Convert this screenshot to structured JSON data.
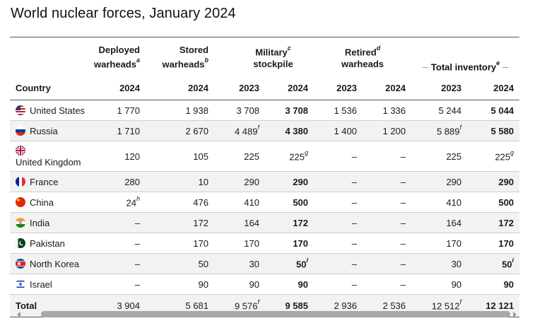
{
  "title": "World nuclear forces, January 2024",
  "headers": {
    "country": "Country",
    "deployed": {
      "line1": "Deployed",
      "line2": "warheads",
      "note": "a"
    },
    "stored": {
      "line1": "Stored",
      "line2": "warheads",
      "note": "b"
    },
    "military": {
      "line1": "Military",
      "note": "c",
      "line2": "stockpile"
    },
    "retired": {
      "line1": "Retired",
      "note": "d",
      "line2": "warheads"
    },
    "total": {
      "label": "Total inventory",
      "note": "e"
    },
    "years": [
      "2024",
      "2024",
      "2023",
      "2024",
      "2023",
      "2024",
      "2023",
      "2024"
    ]
  },
  "rows": [
    {
      "country": "United States",
      "flag": "us-flag-icon",
      "deployed": "1 770",
      "stored": "1 938",
      "mil23": "3 708",
      "mil24": "3 708",
      "ret23": "1 536",
      "ret24": "1 336",
      "tot23": "5 244",
      "tot24": "5 044"
    },
    {
      "country": "Russia",
      "flag": "russia-flag-icon",
      "deployed": "1 710",
      "stored": "2 670",
      "mil23": "4 489",
      "mil23_note": "f",
      "mil24": "4 380",
      "ret23": "1 400",
      "ret24": "1 200",
      "tot23": "5 889",
      "tot23_note": "f",
      "tot24": "5 580"
    },
    {
      "country": "United Kingdom",
      "flag": "uk-flag-icon",
      "deployed": "120",
      "stored": "105",
      "mil23": "225",
      "mil24": "225",
      "mil24_note": "g",
      "ret23": "–",
      "ret24": "–",
      "tot23": "225",
      "tot24": "225",
      "tot24_note": "g"
    },
    {
      "country": "France",
      "flag": "france-flag-icon",
      "deployed": "280",
      "stored": "10",
      "mil23": "290",
      "mil24": "290",
      "ret23": "–",
      "ret24": "–",
      "tot23": "290",
      "tot24": "290"
    },
    {
      "country": "China",
      "flag": "china-flag-icon",
      "deployed": "24",
      "deployed_note": "h",
      "stored": "476",
      "mil23": "410",
      "mil24": "500",
      "ret23": "–",
      "ret24": "–",
      "tot23": "410",
      "tot24": "500"
    },
    {
      "country": "India",
      "flag": "india-flag-icon",
      "deployed": "–",
      "stored": "172",
      "mil23": "164",
      "mil24": "172",
      "ret23": "–",
      "ret24": "–",
      "tot23": "164",
      "tot24": "172"
    },
    {
      "country": "Pakistan",
      "flag": "pakistan-flag-icon",
      "deployed": "–",
      "stored": "170",
      "mil23": "170",
      "mil24": "170",
      "ret23": "–",
      "ret24": "–",
      "tot23": "170",
      "tot24": "170"
    },
    {
      "country": "North Korea",
      "flag": "north-korea-flag-icon",
      "deployed": "–",
      "stored": "50",
      "mil23": "30",
      "mil24": "50",
      "mil24_note": "i",
      "ret23": "–",
      "ret24": "–",
      "tot23": "30",
      "tot24": "50",
      "tot24_note": "i"
    },
    {
      "country": "Israel",
      "flag": "israel-flag-icon",
      "deployed": "–",
      "stored": "90",
      "mil23": "90",
      "mil24": "90",
      "ret23": "–",
      "ret24": "–",
      "tot23": "90",
      "tot24": "90"
    }
  ],
  "total": {
    "label": "Total",
    "deployed": "3 904",
    "stored": "5 681",
    "mil23": "9 576",
    "mil23_note": "f",
    "mil24": "9 585",
    "ret23": "2 936",
    "ret24": "2 536",
    "tot23": "12 512",
    "tot23_note": "f",
    "tot24": "12 121"
  }
}
